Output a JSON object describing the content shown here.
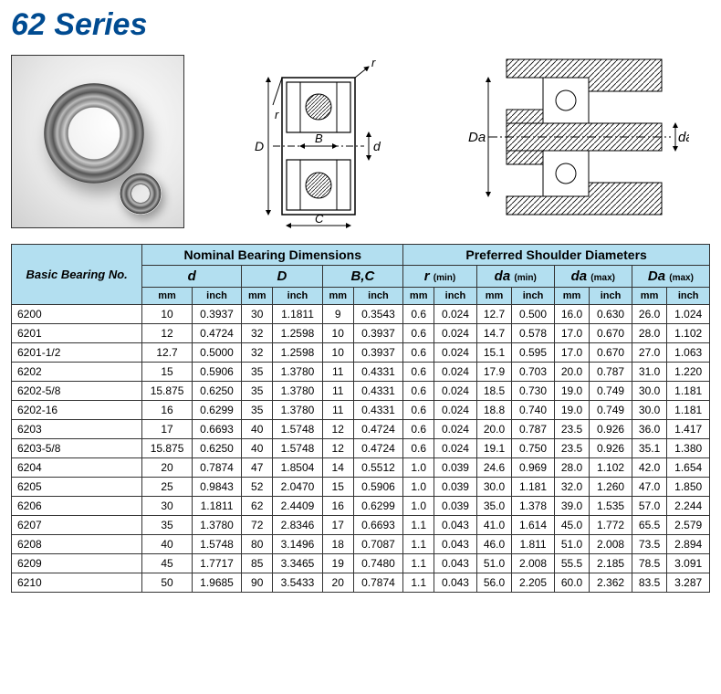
{
  "title": "62 Series",
  "header": {
    "basic": "Basic Bearing No.",
    "nominal": "Nominal Bearing Dimensions",
    "shoulder": "Preferred Shoulder Diameters",
    "dims": {
      "d": {
        "sym": "d",
        "sub": ""
      },
      "D": {
        "sym": "D",
        "sub": ""
      },
      "BC": {
        "sym": "B,C",
        "sub": ""
      },
      "r": {
        "sym": "r",
        "sub": "(min)"
      },
      "da_min": {
        "sym": "da",
        "sub": "(min)"
      },
      "da_max": {
        "sym": "da",
        "sub": "(max)"
      },
      "Da_max": {
        "sym": "Da",
        "sub": "(max)"
      }
    },
    "unit_mm": "mm",
    "unit_in": "inch"
  },
  "diagram_labels": {
    "r": "r",
    "D": "D",
    "d": "d",
    "B": "B",
    "C": "C",
    "Da": "Da",
    "da": "da"
  },
  "rows": [
    {
      "n": "6200",
      "d_mm": "10",
      "d_in": "0.3937",
      "D_mm": "30",
      "D_in": "1.1811",
      "B_mm": "9",
      "B_in": "0.3543",
      "r_mm": "0.6",
      "r_in": "0.024",
      "damin_mm": "12.7",
      "damin_in": "0.500",
      "damax_mm": "16.0",
      "damax_in": "0.630",
      "Da_mm": "26.0",
      "Da_in": "1.024"
    },
    {
      "n": "6201",
      "d_mm": "12",
      "d_in": "0.4724",
      "D_mm": "32",
      "D_in": "1.2598",
      "B_mm": "10",
      "B_in": "0.3937",
      "r_mm": "0.6",
      "r_in": "0.024",
      "damin_mm": "14.7",
      "damin_in": "0.578",
      "damax_mm": "17.0",
      "damax_in": "0.670",
      "Da_mm": "28.0",
      "Da_in": "1.102"
    },
    {
      "n": "6201-1/2",
      "d_mm": "12.7",
      "d_in": "0.5000",
      "D_mm": "32",
      "D_in": "1.2598",
      "B_mm": "10",
      "B_in": "0.3937",
      "r_mm": "0.6",
      "r_in": "0.024",
      "damin_mm": "15.1",
      "damin_in": "0.595",
      "damax_mm": "17.0",
      "damax_in": "0.670",
      "Da_mm": "27.0",
      "Da_in": "1.063"
    },
    {
      "n": "6202",
      "d_mm": "15",
      "d_in": "0.5906",
      "D_mm": "35",
      "D_in": "1.3780",
      "B_mm": "11",
      "B_in": "0.4331",
      "r_mm": "0.6",
      "r_in": "0.024",
      "damin_mm": "17.9",
      "damin_in": "0.703",
      "damax_mm": "20.0",
      "damax_in": "0.787",
      "Da_mm": "31.0",
      "Da_in": "1.220"
    },
    {
      "n": "6202-5/8",
      "d_mm": "15.875",
      "d_in": "0.6250",
      "D_mm": "35",
      "D_in": "1.3780",
      "B_mm": "11",
      "B_in": "0.4331",
      "r_mm": "0.6",
      "r_in": "0.024",
      "damin_mm": "18.5",
      "damin_in": "0.730",
      "damax_mm": "19.0",
      "damax_in": "0.749",
      "Da_mm": "30.0",
      "Da_in": "1.181"
    },
    {
      "n": "6202-16",
      "d_mm": "16",
      "d_in": "0.6299",
      "D_mm": "35",
      "D_in": "1.3780",
      "B_mm": "11",
      "B_in": "0.4331",
      "r_mm": "0.6",
      "r_in": "0.024",
      "damin_mm": "18.8",
      "damin_in": "0.740",
      "damax_mm": "19.0",
      "damax_in": "0.749",
      "Da_mm": "30.0",
      "Da_in": "1.181"
    },
    {
      "n": "6203",
      "d_mm": "17",
      "d_in": "0.6693",
      "D_mm": "40",
      "D_in": "1.5748",
      "B_mm": "12",
      "B_in": "0.4724",
      "r_mm": "0.6",
      "r_in": "0.024",
      "damin_mm": "20.0",
      "damin_in": "0.787",
      "damax_mm": "23.5",
      "damax_in": "0.926",
      "Da_mm": "36.0",
      "Da_in": "1.417"
    },
    {
      "n": "6203-5/8",
      "d_mm": "15.875",
      "d_in": "0.6250",
      "D_mm": "40",
      "D_in": "1.5748",
      "B_mm": "12",
      "B_in": "0.4724",
      "r_mm": "0.6",
      "r_in": "0.024",
      "damin_mm": "19.1",
      "damin_in": "0.750",
      "damax_mm": "23.5",
      "damax_in": "0.926",
      "Da_mm": "35.1",
      "Da_in": "1.380"
    },
    {
      "n": "6204",
      "d_mm": "20",
      "d_in": "0.7874",
      "D_mm": "47",
      "D_in": "1.8504",
      "B_mm": "14",
      "B_in": "0.5512",
      "r_mm": "1.0",
      "r_in": "0.039",
      "damin_mm": "24.6",
      "damin_in": "0.969",
      "damax_mm": "28.0",
      "damax_in": "1.102",
      "Da_mm": "42.0",
      "Da_in": "1.654"
    },
    {
      "n": "6205",
      "d_mm": "25",
      "d_in": "0.9843",
      "D_mm": "52",
      "D_in": "2.0470",
      "B_mm": "15",
      "B_in": "0.5906",
      "r_mm": "1.0",
      "r_in": "0.039",
      "damin_mm": "30.0",
      "damin_in": "1.181",
      "damax_mm": "32.0",
      "damax_in": "1.260",
      "Da_mm": "47.0",
      "Da_in": "1.850"
    },
    {
      "n": "6206",
      "d_mm": "30",
      "d_in": "1.1811",
      "D_mm": "62",
      "D_in": "2.4409",
      "B_mm": "16",
      "B_in": "0.6299",
      "r_mm": "1.0",
      "r_in": "0.039",
      "damin_mm": "35.0",
      "damin_in": "1.378",
      "damax_mm": "39.0",
      "damax_in": "1.535",
      "Da_mm": "57.0",
      "Da_in": "2.244"
    },
    {
      "n": "6207",
      "d_mm": "35",
      "d_in": "1.3780",
      "D_mm": "72",
      "D_in": "2.8346",
      "B_mm": "17",
      "B_in": "0.6693",
      "r_mm": "1.1",
      "r_in": "0.043",
      "damin_mm": "41.0",
      "damin_in": "1.614",
      "damax_mm": "45.0",
      "damax_in": "1.772",
      "Da_mm": "65.5",
      "Da_in": "2.579"
    },
    {
      "n": "6208",
      "d_mm": "40",
      "d_in": "1.5748",
      "D_mm": "80",
      "D_in": "3.1496",
      "B_mm": "18",
      "B_in": "0.7087",
      "r_mm": "1.1",
      "r_in": "0.043",
      "damin_mm": "46.0",
      "damin_in": "1.811",
      "damax_mm": "51.0",
      "damax_in": "2.008",
      "Da_mm": "73.5",
      "Da_in": "2.894"
    },
    {
      "n": "6209",
      "d_mm": "45",
      "d_in": "1.7717",
      "D_mm": "85",
      "D_in": "3.3465",
      "B_mm": "19",
      "B_in": "0.7480",
      "r_mm": "1.1",
      "r_in": "0.043",
      "damin_mm": "51.0",
      "damin_in": "2.008",
      "damax_mm": "55.5",
      "damax_in": "2.185",
      "Da_mm": "78.5",
      "Da_in": "3.091"
    },
    {
      "n": "6210",
      "d_mm": "50",
      "d_in": "1.9685",
      "D_mm": "90",
      "D_in": "3.5433",
      "B_mm": "20",
      "B_in": "0.7874",
      "r_mm": "1.1",
      "r_in": "0.043",
      "damin_mm": "56.0",
      "damin_in": "2.205",
      "damax_mm": "60.0",
      "damax_in": "2.362",
      "Da_mm": "83.5",
      "Da_in": "3.287"
    }
  ],
  "styling": {
    "header_bg": "#b3dff0",
    "border_color": "#333333",
    "title_color": "#004b91",
    "font_family": "Arial",
    "title_fontsize": 34,
    "table_fontsize": 12
  }
}
